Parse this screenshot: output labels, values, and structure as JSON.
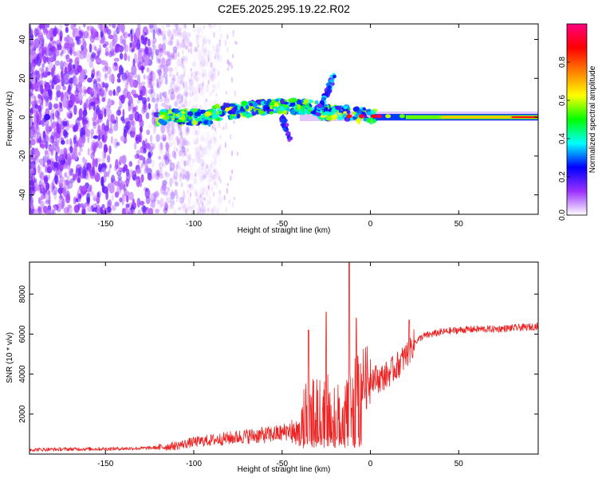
{
  "figure": {
    "title": "C2E5.2025.295.19.22.R02"
  },
  "chart_data": [
    {
      "type": "heatmap",
      "title": "C2E5.2025.295.19.22.R02",
      "xlabel": "Height of straight line (km)",
      "ylabel": "Frequency (Hz)",
      "xlim": [
        -193,
        95
      ],
      "ylim": [
        -50,
        48
      ],
      "xticks": [
        -150,
        -100,
        -50,
        0,
        50
      ],
      "xtick_labels": [
        "-150",
        "-100",
        "-50",
        "0",
        "50"
      ],
      "yticks": [
        -40,
        -20,
        0,
        20,
        40
      ],
      "ytick_labels": [
        "-40",
        "-20",
        "0",
        "20",
        "40"
      ],
      "colorbar": {
        "label": "Normalized spectral amplitude",
        "range": [
          0,
          1
        ],
        "ticks": [
          0.0,
          0.2,
          0.4,
          0.6,
          0.8
        ],
        "tick_labels": [
          "0.0",
          "0.2",
          "0.4",
          "0.6",
          "0.8"
        ],
        "colormap": [
          "#ffffff",
          "#9b30ff",
          "#0000ff",
          "#00ffff",
          "#00ff00",
          "#ffff00",
          "#ff8000",
          "#ff0000",
          "#ff0080"
        ]
      },
      "features": {
        "noise_region_x": [
          -193,
          -100
        ],
        "main_band_freq_hz": 0,
        "main_band_x": [
          -120,
          95
        ],
        "branch_up": {
          "x": [
            -30,
            -20
          ],
          "freq": [
            2,
            22
          ]
        },
        "branch_down": {
          "x": [
            -50,
            -45
          ],
          "freq": [
            0,
            -12
          ]
        }
      }
    },
    {
      "type": "line",
      "xlabel": "Height of straight line (km)",
      "ylabel": "SNR (10 * v/v)",
      "xlim": [
        -193,
        95
      ],
      "ylim": [
        0,
        9600
      ],
      "xticks": [
        -150,
        -100,
        -50,
        0,
        50
      ],
      "xtick_labels": [
        "-150",
        "-100",
        "-50",
        "0",
        "50"
      ],
      "yticks": [
        2000,
        4000,
        6000,
        8000
      ],
      "ytick_labels": [
        "2000",
        "4000",
        "6000",
        "8000"
      ],
      "line_color": "#ee2222",
      "series": [
        {
          "name": "SNR",
          "x": [
            -193,
            -170,
            -150,
            -130,
            -120,
            -110,
            -100,
            -90,
            -80,
            -70,
            -60,
            -50,
            -45,
            -40,
            -35,
            -30,
            -25,
            -20,
            -15,
            -12,
            -10,
            -5,
            0,
            5,
            10,
            15,
            20,
            25,
            30,
            40,
            50,
            60,
            70,
            80,
            90,
            95
          ],
          "y": [
            220,
            250,
            260,
            290,
            330,
            420,
            600,
            700,
            800,
            900,
            950,
            1050,
            1250,
            1600,
            2100,
            2300,
            2500,
            2300,
            2100,
            2600,
            3000,
            3700,
            3900,
            3750,
            4000,
            4400,
            4900,
            5600,
            5900,
            6100,
            6200,
            6250,
            6250,
            6300,
            6350,
            6400
          ],
          "spikes": [
            {
              "x": -35,
              "y": 6200
            },
            {
              "x": -25,
              "y": 7100
            },
            {
              "x": -12,
              "y": 9600
            },
            {
              "x": -8,
              "y": 6800
            },
            {
              "x": 22,
              "y": 6700
            }
          ]
        }
      ]
    }
  ]
}
